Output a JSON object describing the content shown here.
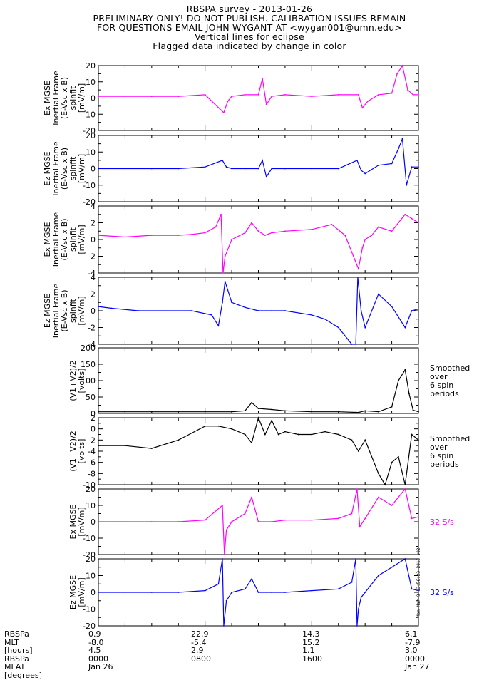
{
  "header": {
    "lines": [
      "RBSPA survey - 2013-01-26",
      "PRELIMINARY ONLY! DO NOT PUBLISH. CALIBRATION ISSUES REMAIN",
      "FOR QUESTIONS EMAIL JOHN WYGANT AT <wygan001@umn.edu>",
      "Vertical lines for eclipse",
      "Flagged data indicated by change in color"
    ]
  },
  "colors": {
    "magenta": "#ff00ff",
    "blue": "#0000ff",
    "black": "#000000"
  },
  "chart_data": [
    {
      "type": "line",
      "ylabel_lines": [
        "Ex MGSE",
        "Inertial Frame",
        "(E-Vsc x B)",
        "spinfit",
        "[mV/m]"
      ],
      "ylim": [
        -20,
        20
      ],
      "yticks": [
        -20,
        -10,
        0,
        10,
        20
      ],
      "color": "magenta",
      "right_note": [],
      "right_note_color": "black",
      "series": [
        {
          "x": [
            0,
            2,
            4,
            6,
            8,
            9.4,
            9.7,
            10,
            11,
            12,
            12.3,
            12.6,
            13,
            14,
            16,
            18,
            19.5,
            19.8,
            20.2,
            21,
            22,
            22.4,
            22.8,
            23.2,
            23.6,
            24
          ],
          "y": [
            1,
            1,
            1,
            1,
            2,
            -9,
            -2,
            1,
            2,
            2,
            12,
            -4,
            1,
            2,
            1,
            2,
            2,
            -6,
            -2,
            2,
            3,
            15,
            20,
            5,
            2,
            2
          ]
        }
      ]
    },
    {
      "type": "line",
      "ylabel_lines": [
        "Ez MGSE",
        "Inertial Frame",
        "(E-Vsc x B)",
        "spinfit",
        "[mV/m]"
      ],
      "ylim": [
        -20,
        20
      ],
      "yticks": [
        -20,
        -10,
        0,
        10,
        20
      ],
      "color": "blue",
      "right_note": [],
      "right_note_color": "black",
      "series": [
        {
          "x": [
            0,
            2,
            4,
            6,
            8,
            9.3,
            9.6,
            10,
            11,
            12,
            12.3,
            12.6,
            13,
            14,
            16,
            18,
            19.4,
            19.7,
            20,
            21,
            22,
            22.5,
            22.8,
            23.1,
            23.5,
            24
          ],
          "y": [
            0,
            0,
            0,
            0,
            1,
            5,
            1,
            0,
            0,
            0,
            5,
            -5,
            0,
            0,
            0,
            0,
            5,
            -1,
            -3,
            2,
            3,
            12,
            18,
            -10,
            1,
            1
          ]
        }
      ]
    },
    {
      "type": "line",
      "ylabel_lines": [
        "Ex MGSE",
        "Inertial Frame",
        "(E-Vsc x B)",
        "spinfit",
        "[mV/m]"
      ],
      "ylim": [
        -4,
        4
      ],
      "yticks": [
        -4,
        -2,
        0,
        2,
        4
      ],
      "color": "magenta",
      "right_note": [],
      "right_note_color": "black",
      "series": [
        {
          "x": [
            0,
            2,
            4,
            6,
            7,
            8,
            8.8,
            9.2,
            9.35,
            9.5,
            10,
            11,
            11.5,
            12,
            12.5,
            13,
            14,
            16,
            17.5,
            18.5,
            19.5,
            19.8,
            20,
            20.5,
            21,
            22,
            22.5,
            23,
            23.5,
            24
          ],
          "y": [
            0.5,
            0.3,
            0.5,
            0.5,
            0.6,
            0.8,
            1.5,
            3,
            -4,
            -2,
            0,
            0.8,
            2,
            1,
            0.5,
            0.8,
            1,
            1.2,
            1.8,
            0.5,
            -3.5,
            -1,
            0,
            0.5,
            1.5,
            1,
            2,
            3,
            2.5,
            2
          ]
        }
      ]
    },
    {
      "type": "line",
      "ylabel_lines": [
        "Ez MGSE",
        "Inertial Frame",
        "(E-Vsc x B)",
        "spinfit",
        "[mV/m]"
      ],
      "ylim": [
        -4,
        4
      ],
      "yticks": [
        -4,
        -2,
        0,
        2,
        4
      ],
      "color": "blue",
      "right_note": [],
      "right_note_color": "black",
      "series": [
        {
          "x": [
            0,
            1,
            3,
            5,
            7,
            8.5,
            9,
            9.3,
            9.5,
            10,
            11,
            12,
            13,
            14,
            16,
            17,
            18,
            19,
            19.3,
            19.45,
            19.7,
            20,
            21,
            22,
            23,
            23.5,
            24
          ],
          "y": [
            0.5,
            0.3,
            0,
            0,
            0,
            -0.5,
            -1.8,
            1,
            3.5,
            1,
            0.4,
            0,
            0,
            0,
            -0.5,
            -1,
            -2,
            -4,
            -4,
            4,
            0,
            -2,
            2,
            0.5,
            -2,
            0,
            0.2
          ]
        }
      ]
    },
    {
      "type": "line",
      "ylabel_lines": [
        "(V1+V2)/2",
        "[volts]"
      ],
      "ylim": [
        0,
        200
      ],
      "yticks": [
        0,
        50,
        100,
        150,
        200
      ],
      "color": "black",
      "right_note": [
        "Smoothed",
        "over",
        "6 spin",
        "periods"
      ],
      "right_note_color": "black",
      "series": [
        {
          "x": [
            0,
            2,
            4,
            6,
            8,
            10,
            11,
            11.5,
            12,
            13,
            14,
            16,
            18,
            19.5,
            20,
            21,
            22,
            22.5,
            23,
            23.3,
            23.6,
            24
          ],
          "y": [
            5,
            5,
            5,
            5,
            5,
            5,
            8,
            33,
            15,
            12,
            8,
            5,
            5,
            3,
            8,
            5,
            20,
            100,
            133,
            60,
            10,
            5
          ]
        }
      ]
    },
    {
      "type": "line",
      "ylabel_lines": [
        "(V1+V2)/2",
        "[volts]"
      ],
      "ylim": [
        -10,
        2
      ],
      "yticks": [
        -10,
        -8,
        -6,
        -4,
        -2,
        0,
        2
      ],
      "color": "black",
      "right_note": [
        "Smoothed",
        "over",
        "6 spin",
        "periods"
      ],
      "right_note_color": "black",
      "series": [
        {
          "x": [
            0,
            2,
            4,
            6,
            8,
            9,
            10,
            11,
            11.5,
            12,
            12.5,
            13,
            13.5,
            14,
            15,
            16,
            17,
            18,
            19,
            19.5,
            20,
            21,
            21.5,
            22,
            22.5,
            23,
            23.5,
            24
          ],
          "y": [
            -3,
            -3,
            -3.5,
            -2,
            0.5,
            0.5,
            0,
            -1,
            -2.5,
            2,
            -1,
            1.5,
            -1,
            -0.5,
            -1,
            -1,
            -0.5,
            -1,
            -2,
            -4,
            -2,
            -8,
            -10,
            -6,
            -5,
            -10,
            -1,
            -2
          ]
        }
      ]
    },
    {
      "type": "line",
      "ylabel_lines": [
        "Ex MGSE",
        "[mV/m]"
      ],
      "ylim": [
        -20,
        20
      ],
      "yticks": [
        -20,
        -10,
        0,
        10,
        20
      ],
      "color": "magenta",
      "right_note": [
        "32 S/s"
      ],
      "right_note_color": "magenta",
      "series": [
        {
          "x": [
            0,
            2,
            4,
            6,
            8,
            9.3,
            9.45,
            9.6,
            10,
            11,
            11.5,
            12,
            13,
            14,
            16,
            18,
            19,
            19.4,
            19.6,
            20,
            21,
            22,
            23,
            23.5,
            24
          ],
          "y": [
            0,
            0,
            0,
            0,
            1,
            10,
            -20,
            -5,
            0,
            5,
            15,
            0,
            0,
            1,
            1,
            2,
            5,
            20,
            -3,
            2,
            15,
            10,
            20,
            2,
            3
          ]
        }
      ]
    },
    {
      "type": "line",
      "ylabel_lines": [
        "Ez MGSE",
        "[mV/m]"
      ],
      "ylim": [
        -20,
        20
      ],
      "yticks": [
        -20,
        -10,
        0,
        10,
        20
      ],
      "color": "blue",
      "right_note": [
        "32 S/s"
      ],
      "right_note_color": "blue",
      "series": [
        {
          "x": [
            0,
            2,
            4,
            6,
            8,
            9,
            9.3,
            9.4,
            9.6,
            10,
            11,
            11.5,
            12,
            13,
            14,
            16,
            18,
            19,
            19.3,
            19.4,
            19.5,
            19.7,
            20,
            21,
            22,
            23,
            23.5,
            24
          ],
          "y": [
            0,
            0,
            0,
            0,
            1,
            5,
            20,
            -20,
            -5,
            0,
            2,
            8,
            0,
            0,
            0,
            1,
            2,
            6,
            20,
            -20,
            -10,
            -3,
            0,
            10,
            15,
            20,
            2,
            1
          ]
        }
      ]
    }
  ],
  "footer": {
    "row_labels": [
      "RBSPa",
      "MLT",
      "[hours]",
      "RBSPa",
      "MLAT",
      "[degrees]"
    ],
    "ticks": [
      {
        "x": 0,
        "lines": [
          "0.9",
          "-8.0",
          "4.5",
          "0000",
          "Jan 26"
        ]
      },
      {
        "x": 8,
        "lines": [
          "22.9",
          "-5.4",
          "2.9",
          "0800",
          ""
        ]
      },
      {
        "x": 16,
        "lines": [
          "14.3",
          "15.2",
          "1.1",
          "1600",
          ""
        ]
      },
      {
        "x": 24,
        "lines": [
          "6.1",
          "-7.9",
          "3.0",
          "0000",
          "Jan 27"
        ]
      }
    ]
  },
  "stamp_text": "Mon Mar  9 13:58:23 2015 v02"
}
